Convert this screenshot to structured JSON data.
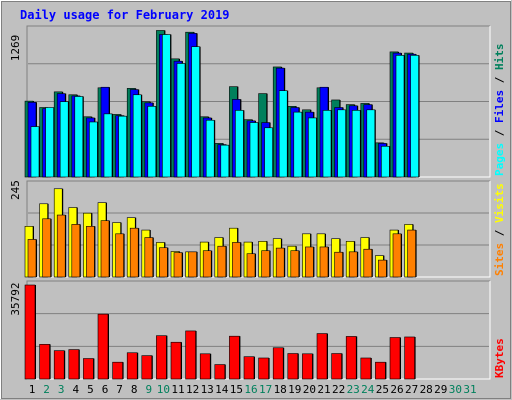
{
  "chart_data": [
    {
      "type": "bar",
      "title": "Daily usage for February 2019",
      "panel": "Pages / Files / Hits",
      "ymax_label": "1269",
      "ylim": [
        0,
        1269
      ],
      "categories": [
        "1",
        "2",
        "3",
        "4",
        "5",
        "6",
        "7",
        "8",
        "9",
        "10",
        "11",
        "12",
        "13",
        "14",
        "15",
        "16",
        "17",
        "18",
        "19",
        "20",
        "21",
        "22",
        "23",
        "24",
        "25",
        "26",
        "27",
        "28",
        "29",
        "30",
        "31"
      ],
      "weekend_days": [
        "2",
        "3",
        "9",
        "10",
        "16",
        "17",
        "23",
        "24",
        "30",
        "31"
      ],
      "series": [
        {
          "name": "Hits",
          "color": "#00805c",
          "values": [
            655,
            600,
            735,
            710,
            520,
            770,
            540,
            765,
            650,
            1265,
            1020,
            1250,
            520,
            290,
            780,
            495,
            720,
            950,
            610,
            580,
            770,
            665,
            625,
            635,
            295,
            1080,
            1070,
            0,
            0,
            0,
            0
          ]
        },
        {
          "name": "Files",
          "color": "#0000ff",
          "values": [
            645,
            590,
            720,
            700,
            510,
            775,
            530,
            755,
            640,
            1230,
            1000,
            1240,
            510,
            280,
            670,
            485,
            470,
            940,
            600,
            560,
            775,
            600,
            615,
            625,
            290,
            1070,
            1060,
            0,
            0,
            0,
            0
          ]
        },
        {
          "name": "Pages",
          "color": "#00ffff",
          "values": [
            435,
            600,
            650,
            695,
            475,
            545,
            525,
            710,
            610,
            1230,
            980,
            1125,
            490,
            275,
            575,
            470,
            425,
            745,
            560,
            510,
            575,
            580,
            575,
            580,
            265,
            1050,
            1050,
            0,
            0,
            0,
            0
          ]
        }
      ]
    },
    {
      "type": "bar",
      "panel": "Sites / Visits",
      "ymax_label": "245",
      "ylim": [
        0,
        245
      ],
      "series": [
        {
          "name": "Visits",
          "color": "#ffff00",
          "values": [
            135,
            195,
            235,
            185,
            170,
            198,
            145,
            158,
            125,
            92,
            68,
            67,
            93,
            105,
            130,
            93,
            95,
            102,
            82,
            115,
            115,
            102,
            95,
            105,
            57,
            125,
            140,
            0,
            0,
            0,
            0
          ]
        },
        {
          "name": "Sites",
          "color": "#ff8000",
          "values": [
            100,
            155,
            165,
            140,
            135,
            150,
            115,
            130,
            105,
            78,
            65,
            67,
            70,
            82,
            92,
            62,
            70,
            77,
            70,
            80,
            80,
            66,
            67,
            74,
            45,
            115,
            125,
            0,
            0,
            0,
            0
          ]
        }
      ]
    },
    {
      "type": "bar",
      "panel": "KBytes",
      "ymax_label": "35792",
      "ylim": [
        0,
        35792
      ],
      "series": [
        {
          "name": "KBytes",
          "color": "#ff0000",
          "values": [
            35792,
            13200,
            10800,
            11200,
            7800,
            24700,
            6400,
            10000,
            8900,
            16500,
            14000,
            18300,
            9600,
            5500,
            16300,
            8500,
            8000,
            11900,
            9700,
            9600,
            17300,
            9700,
            16200,
            8000,
            6400,
            15800,
            16000,
            0,
            0,
            0,
            0
          ]
        }
      ]
    }
  ]
}
